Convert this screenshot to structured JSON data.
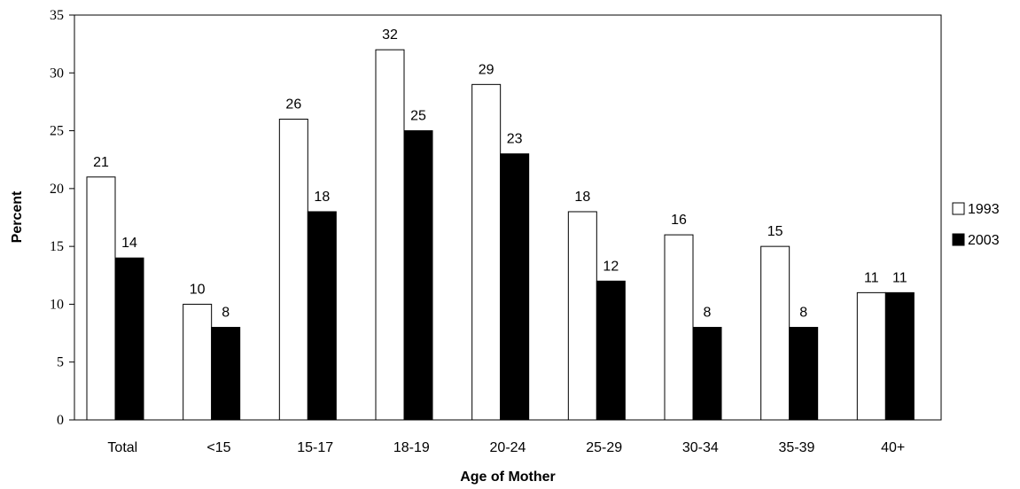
{
  "chart_data": {
    "type": "bar",
    "title": "",
    "xlabel": "Age of Mother",
    "ylabel": "Percent",
    "ylim": [
      0,
      35
    ],
    "yticks": [
      0,
      5,
      10,
      15,
      20,
      25,
      30,
      35
    ],
    "grid": false,
    "legend_position": "right",
    "categories": [
      "Total",
      "<15",
      "15-17",
      "18-19",
      "20-24",
      "25-29",
      "30-34",
      "35-39",
      "40+"
    ],
    "series": [
      {
        "name": "1993",
        "color": "#ffffff",
        "values": [
          21,
          10,
          26,
          32,
          29,
          18,
          16,
          15,
          11
        ]
      },
      {
        "name": "2003",
        "color": "#000000",
        "values": [
          14,
          8,
          18,
          25,
          23,
          12,
          8,
          8,
          11
        ]
      }
    ]
  }
}
